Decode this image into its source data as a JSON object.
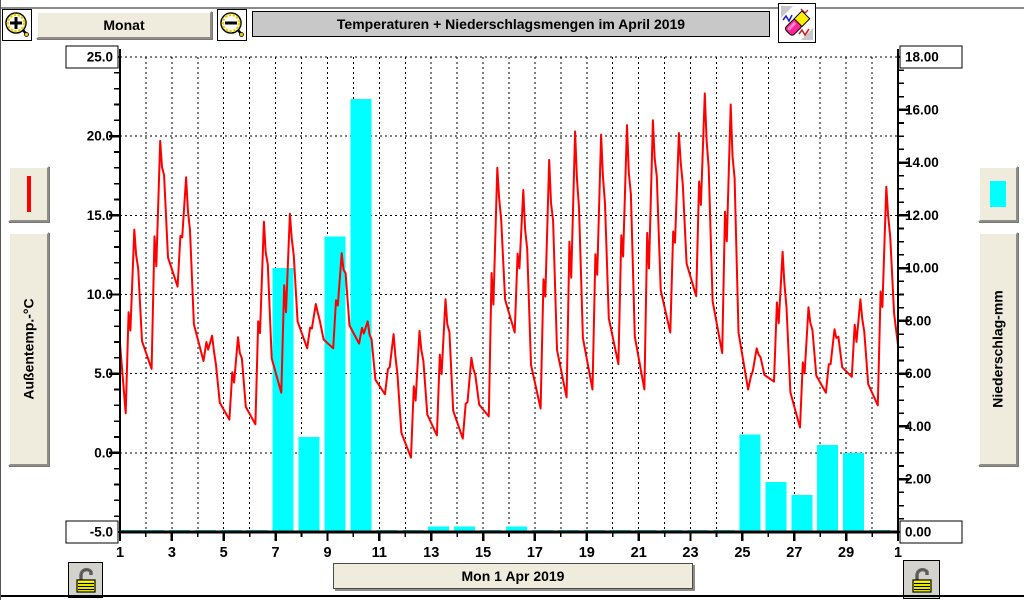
{
  "toolbar": {
    "zoom_in_label": "+",
    "zoom_out_label": "-",
    "period_label": "Monat",
    "title": "Temperaturen + Niederschlagsmengen im April 2019",
    "eraser_icon": "eraser-over-chart"
  },
  "left_panel": {
    "legend_icon": "red-temperature-line",
    "axis_label": "Außentemp.-°C"
  },
  "right_panel": {
    "legend_icon": "cyan-precipitation-bar",
    "axis_label": "Niederschlag-mm"
  },
  "bottom": {
    "date_label": "Mon 1 Apr 2019",
    "left_lock_icon": "open-padlock",
    "right_lock_icon": "open-padlock"
  },
  "colors": {
    "temperature": "#ff0000",
    "precipitation": "#00ffff",
    "title_bg": "#c8c8c8",
    "button_face": "#efecde",
    "grid": "#000000"
  },
  "chart_data": {
    "type": "line+bar",
    "title": "Temperaturen + Niederschlagsmengen im April 2019",
    "grid": "dashed, vertical per day, horizontal per 5 °C",
    "x_axis": {
      "start_date": "Mon 1 Apr 2019",
      "days": 31,
      "tick_labels": [
        "1",
        "3",
        "5",
        "7",
        "9",
        "11",
        "13",
        "15",
        "17",
        "19",
        "21",
        "23",
        "25",
        "27",
        "29",
        "1"
      ]
    },
    "left_axis": {
      "label": "Außentemp.-°C",
      "min": -5,
      "max": 25,
      "major_step": 5,
      "minor_step": 1,
      "tick_labels": [
        "25.0",
        "20.0",
        "15.0",
        "10.0",
        "5.0",
        "0.0",
        "-5.0"
      ]
    },
    "right_axis": {
      "label": "Niederschlag-mm",
      "min": 0,
      "max": 18,
      "major_step": 2,
      "minor_step": 0.5,
      "tick_labels": [
        "18.00",
        "16.00",
        "14.00",
        "12.00",
        "10.00",
        "8.00",
        "6.00",
        "4.00",
        "2.00",
        "0.00"
      ]
    },
    "series": [
      {
        "name": "Außentemperatur",
        "type": "line",
        "color": "#ff0000",
        "unit": "°C",
        "start_value": 6.9,
        "end_value": 6.8,
        "daily_min": [
          2.5,
          5.3,
          10.5,
          5.8,
          2.1,
          1.8,
          3.8,
          6.6,
          6.6,
          6.9,
          3.7,
          -0.3,
          1.1,
          0.9,
          2.3,
          7.6,
          2.8,
          3.5,
          4.0,
          5.6,
          4.0,
          7.6,
          9.9,
          6.3,
          4.0,
          4.5,
          1.6,
          3.8,
          4.8,
          3.0
        ],
        "daily_max": [
          14.1,
          19.7,
          17.4,
          7.4,
          7.3,
          14.6,
          15.1,
          9.4,
          12.6,
          8.3,
          7.5,
          7.7,
          9.7,
          6.0,
          18.0,
          16.6,
          18.5,
          20.3,
          20.1,
          20.7,
          21.0,
          20.2,
          22.7,
          22.0,
          6.6,
          12.7,
          9.2,
          7.8,
          9.7,
          16.8
        ]
      },
      {
        "name": "Niederschlag",
        "type": "bar",
        "color": "#00ffff",
        "unit": "mm",
        "daily_mm": [
          0,
          0,
          0,
          0,
          0,
          0,
          10.0,
          3.6,
          11.2,
          16.4,
          0,
          0,
          0.2,
          0.2,
          0,
          0.2,
          0,
          0,
          0,
          0,
          0,
          0,
          0,
          0,
          3.7,
          1.9,
          1.4,
          3.3,
          3.0,
          0
        ]
      }
    ]
  }
}
